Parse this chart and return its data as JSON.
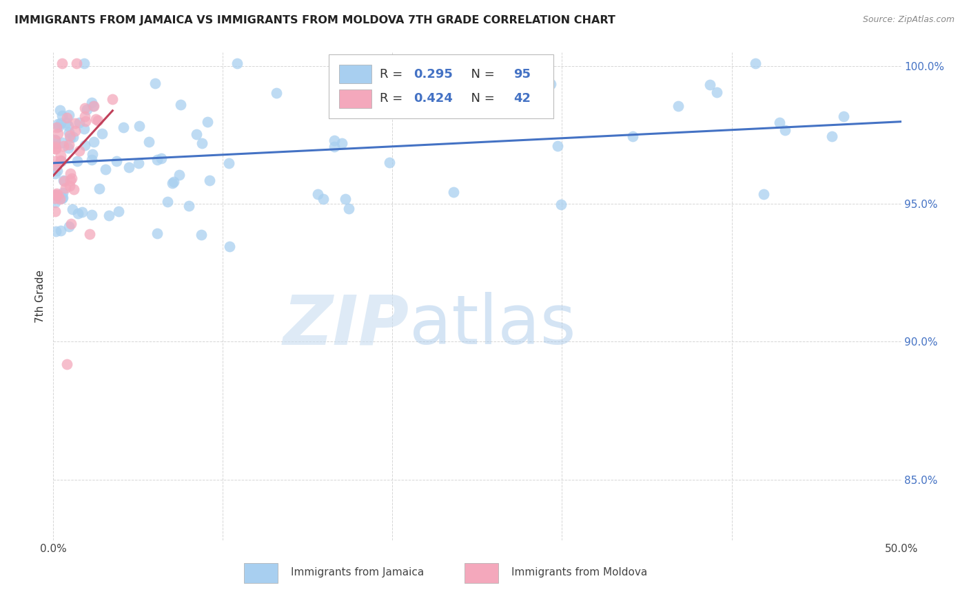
{
  "title": "IMMIGRANTS FROM JAMAICA VS IMMIGRANTS FROM MOLDOVA 7TH GRADE CORRELATION CHART",
  "source": "Source: ZipAtlas.com",
  "ylabel": "7th Grade",
  "xlim": [
    0.0,
    0.5
  ],
  "ylim": [
    0.828,
    1.005
  ],
  "jamaica_color": "#A8CFF0",
  "moldova_color": "#F4A8BC",
  "jamaica_line_color": "#4472C4",
  "moldova_line_color": "#C0405A",
  "background_color": "#FFFFFF",
  "legend_r_jamaica": "0.295",
  "legend_n_jamaica": "95",
  "legend_r_moldova": "0.424",
  "legend_n_moldova": "42",
  "grid_color": "#CCCCCC",
  "ytick_color": "#4472C4",
  "title_color": "#222222",
  "source_color": "#888888",
  "jamaica_seed": 42,
  "moldova_seed": 17,
  "watermark_zip_color": "#C8DDF0",
  "watermark_atlas_color": "#A0C4E8"
}
